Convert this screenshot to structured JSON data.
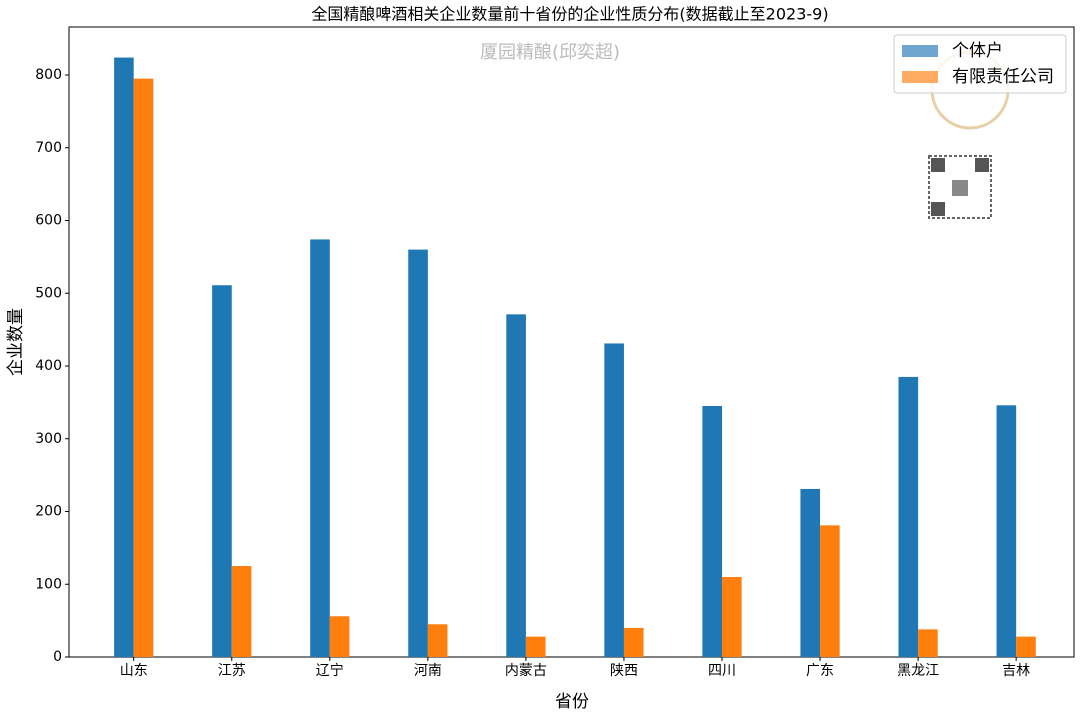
{
  "chart_data": {
    "type": "bar",
    "title": "全国精酿啤酒相关企业数量前十省份的企业性质分布(数据截止至2023-9)",
    "annotation": "厦园精酿(邱奕超)",
    "x_label": "省份",
    "y_label": "企业数量",
    "categories": [
      "山东",
      "江苏",
      "辽宁",
      "河南",
      "内蒙古",
      "陕西",
      "四川",
      "广东",
      "黑龙江",
      "吉林"
    ],
    "series": [
      {
        "name": "个体户",
        "color": "#1f77b4",
        "values": [
          824,
          511,
          574,
          560,
          471,
          431,
          345,
          231,
          385,
          346
        ]
      },
      {
        "name": "有限责任公司",
        "color": "#ff7f0e",
        "values": [
          795,
          125,
          56,
          45,
          28,
          40,
          110,
          181,
          38,
          28
        ]
      }
    ],
    "ylim": [
      0,
      866
    ],
    "yticks": [
      0,
      100,
      200,
      300,
      400,
      500,
      600,
      700,
      800
    ],
    "legend": "upper right",
    "grid": false
  }
}
